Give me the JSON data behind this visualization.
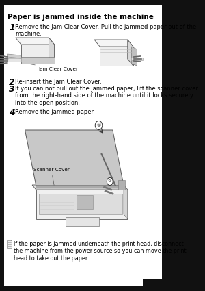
{
  "title": "Paper is jammed inside the machine",
  "step1_num": "1",
  "step1_text": "Remove the Jam Clear Cover. Pull the jammed paper out of the\nmachine.",
  "step2_num": "2",
  "step2_text": "Re-insert the Jam Clear Cover.",
  "step3_num": "3",
  "step3_text": "If you can not pull out the jammed paper, lift the scanner cover\nfrom the right-hand side of the machine until it locks securely\ninto the open position.",
  "step4_num": "4",
  "step4_text": "Remove the jammed paper.",
  "note_text": "If the paper is jammed underneath the print head, disconnect\nthe machine from the power source so you can move the print\nhead to take out the paper.",
  "label_jam_clear": "Jam Clear Cover",
  "label_scanner": "Scanner Cover",
  "bg_color": "#ffffff",
  "text_color": "#000000",
  "outer_bg": "#111111",
  "title_underline": true
}
